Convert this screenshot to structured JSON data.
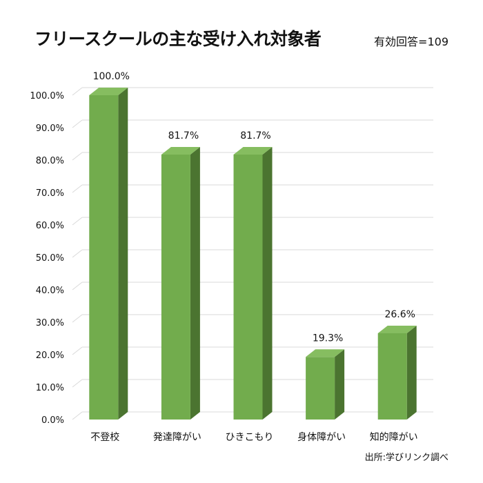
{
  "chart_data": {
    "type": "bar",
    "title": "フリースクールの主な受け入れ対象者",
    "sample_note": "有効回答=109",
    "source_note": "出所:学びリンク調べ",
    "categories": [
      "不登校",
      "発達障がい",
      "ひきこもり",
      "身体障がい",
      "知的障がい"
    ],
    "values": [
      100.0,
      81.7,
      81.7,
      19.3,
      26.6
    ],
    "data_labels": [
      "100.0%",
      "81.7%",
      "81.7%",
      "19.3%",
      "26.6%"
    ],
    "ylim": [
      0,
      100
    ],
    "yticks": [
      0,
      10,
      20,
      30,
      40,
      50,
      60,
      70,
      80,
      90,
      100
    ],
    "ytick_labels": [
      "0.0%",
      "10.0%",
      "20.0%",
      "30.0%",
      "40.0%",
      "50.0%",
      "60.0%",
      "70.0%",
      "80.0%",
      "90.0%",
      "100.0%"
    ],
    "grid": true,
    "style": "3d",
    "colors": {
      "bar_front": "#72ac4d",
      "bar_side": "#4b7430",
      "bar_top": "#86bd60",
      "grid": "#d9d9d9"
    }
  }
}
